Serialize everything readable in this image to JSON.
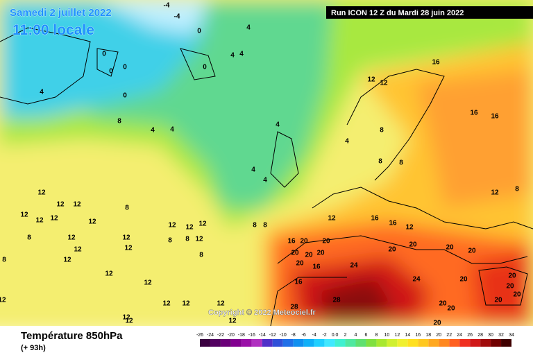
{
  "header": {
    "date": "Samedi 2 juillet 2022",
    "time": "11:00 locale",
    "run": "Run ICON 12 Z du Mardi 28 juin 2022"
  },
  "footer": {
    "title": "Température 850hPa",
    "lead": "(+ 93h)",
    "copyright": "Copyright © 2022 Meteociel.fr"
  },
  "scale": {
    "labels": [
      "-26",
      "-24",
      "-22",
      "-20",
      "-18",
      "-16",
      "-14",
      "-12",
      "-10",
      "-8",
      "-6",
      "-4",
      "-2",
      "0.0",
      "2",
      "4",
      "6",
      "8",
      "10",
      "12",
      "14",
      "16",
      "18",
      "20",
      "22",
      "24",
      "26",
      "28",
      "30",
      "32",
      "34"
    ],
    "colors": [
      "#3a0040",
      "#520060",
      "#6a0078",
      "#820090",
      "#9a10a8",
      "#b030c0",
      "#5030c8",
      "#3050d8",
      "#2070e8",
      "#1090f0",
      "#10b0f8",
      "#20d0ff",
      "#40e8ff",
      "#40f0d0",
      "#50e8a0",
      "#60e070",
      "#80e040",
      "#a8e830",
      "#d0f030",
      "#f0f030",
      "#ffe020",
      "#ffc820",
      "#ffa820",
      "#ff8820",
      "#ff6020",
      "#f03020",
      "#d01818",
      "#a00c0c",
      "#700000",
      "#400000"
    ]
  },
  "contour_labels": [
    "-4",
    "-4",
    "0",
    "4",
    "4",
    "4",
    "0",
    "0",
    "0",
    "0",
    "4",
    "0",
    "8",
    "4",
    "4",
    "4",
    "4",
    "4",
    "4",
    "12",
    "12",
    "16",
    "16",
    "16",
    "8",
    "8",
    "8",
    "12",
    "8",
    "12",
    "12",
    "12",
    "12",
    "12",
    "12",
    "12",
    "8",
    "12",
    "12",
    "12",
    "8",
    "12",
    "12",
    "8",
    "8",
    "12",
    "12",
    "12",
    "12",
    "8",
    "12",
    "8",
    "8",
    "12",
    "16",
    "16",
    "12",
    "16",
    "20",
    "20",
    "20",
    "20",
    "20",
    "20",
    "16",
    "24",
    "20",
    "20",
    "20",
    "20",
    "16",
    "24",
    "20",
    "20",
    "20",
    "20",
    "20",
    "28",
    "28",
    "20",
    "20",
    "20",
    "12",
    "12",
    "12",
    "12",
    "12",
    "12",
    "12",
    "8",
    "12"
  ]
}
